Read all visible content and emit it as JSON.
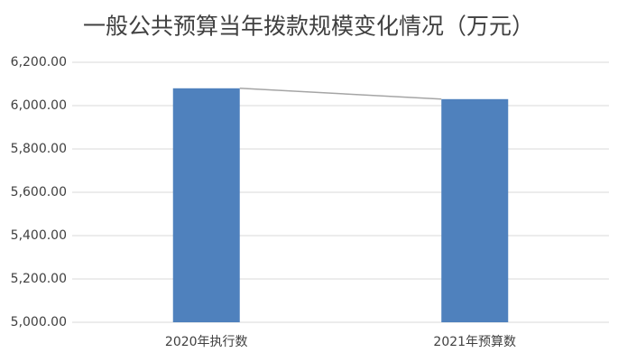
{
  "chart_data": {
    "type": "bar",
    "title": "一般公共预算当年拨款规模变化情况（万元）",
    "categories": [
      "2020年执行数",
      "2021年预算数"
    ],
    "values": [
      6080,
      6030
    ],
    "color": "#4f81bd",
    "ylim": [
      5000,
      6200
    ],
    "yticks": [
      {
        "value": 5000,
        "label": "5,000.00"
      },
      {
        "value": 5200,
        "label": "5,200.00"
      },
      {
        "value": 5400,
        "label": "5,400.00"
      },
      {
        "value": 5600,
        "label": "5,600.00"
      },
      {
        "value": 5800,
        "label": "5,800.00"
      },
      {
        "value": 6000,
        "label": "6,000.00"
      },
      {
        "value": 6200,
        "label": "6,200.00"
      }
    ],
    "grid": true
  }
}
